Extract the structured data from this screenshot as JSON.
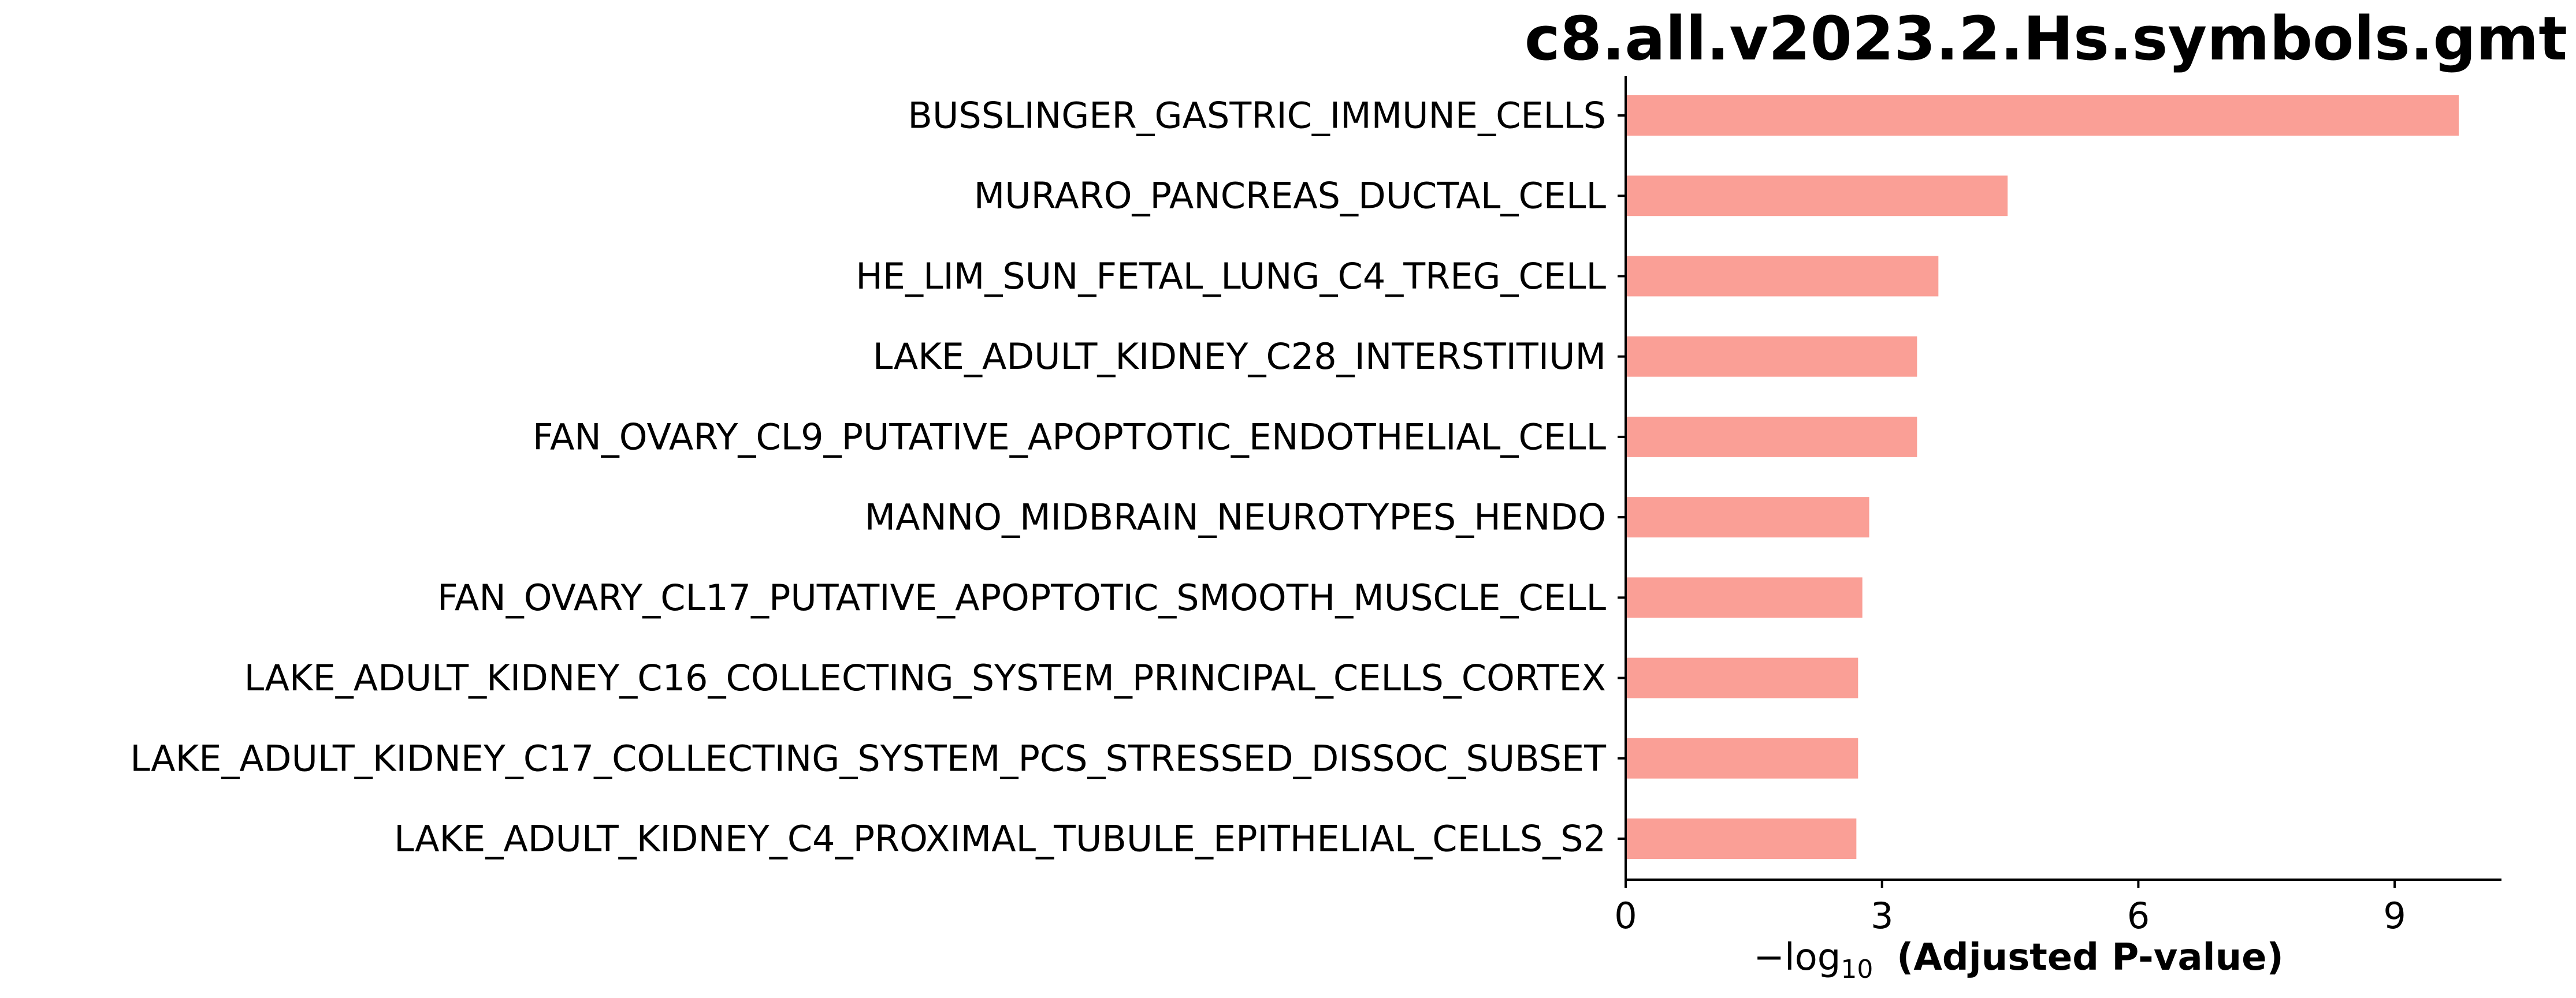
{
  "chart_data": {
    "type": "bar",
    "orientation": "horizontal",
    "title": "c8.all.v2023.2.Hs.symbols.gmt",
    "xlabel_prefix": "−log",
    "xlabel_subscript": "10",
    "xlabel_main": "(Adjusted P-value)",
    "ylabel": "",
    "categories": [
      "BUSSLINGER_GASTRIC_IMMUNE_CELLS",
      "MURARO_PANCREAS_DUCTAL_CELL",
      "HE_LIM_SUN_FETAL_LUNG_C4_TREG_CELL",
      "LAKE_ADULT_KIDNEY_C28_INTERSTITIUM",
      "FAN_OVARY_CL9_PUTATIVE_APOPTOTIC_ENDOTHELIAL_CELL",
      "MANNO_MIDBRAIN_NEUROTYPES_HENDO",
      "FAN_OVARY_CL17_PUTATIVE_APOPTOTIC_SMOOTH_MUSCLE_CELL",
      "LAKE_ADULT_KIDNEY_C16_COLLECTING_SYSTEM_PRINCIPAL_CELLS_CORTEX",
      "LAKE_ADULT_KIDNEY_C17_COLLECTING_SYSTEM_PCS_STRESSED_DISSOC_SUBSET",
      "LAKE_ADULT_KIDNEY_C4_PROXIMAL_TUBULE_EPITHELIAL_CELLS_S2"
    ],
    "values": [
      9.75,
      4.47,
      3.66,
      3.41,
      3.41,
      2.85,
      2.77,
      2.72,
      2.72,
      2.7
    ],
    "xlim": [
      0,
      10.25
    ],
    "xticks": [
      0,
      3,
      6,
      9
    ],
    "bar_color": "#fa9f96",
    "grid": false
  }
}
